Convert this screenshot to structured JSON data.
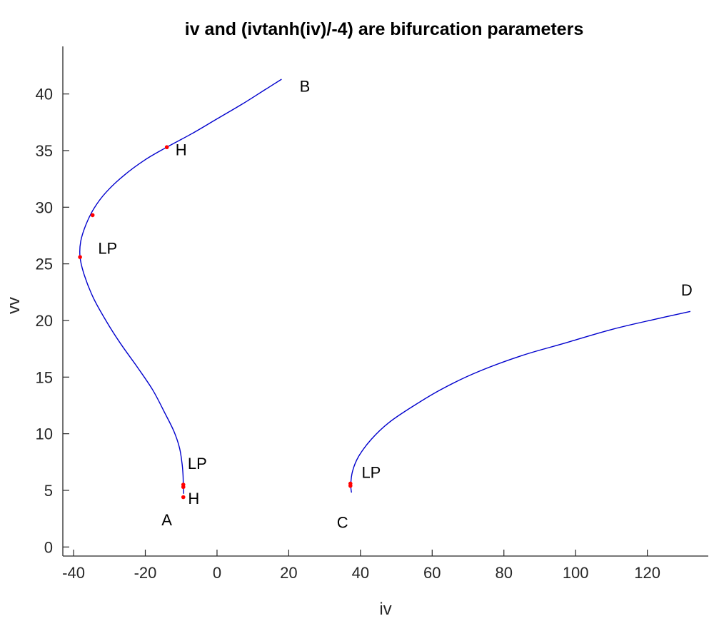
{
  "chart_data": {
    "type": "line",
    "title": "iv and (ivtanh(iv)/-4) are bifurcation parameters",
    "xlabel": "iv",
    "ylabel": "vv",
    "xlim": [
      -43,
      137
    ],
    "ylim": [
      -0.8,
      44.2
    ],
    "xticks": [
      -40,
      -20,
      0,
      20,
      40,
      60,
      80,
      100,
      120
    ],
    "yticks": [
      0,
      5,
      10,
      15,
      20,
      25,
      30,
      35,
      40
    ],
    "xtick_labels": [
      "-40",
      "-20",
      "0",
      "20",
      "40",
      "60",
      "80",
      "100",
      "120"
    ],
    "ytick_labels": [
      "0",
      "5",
      "10",
      "15",
      "20",
      "25",
      "30",
      "35",
      "40"
    ],
    "grid": false,
    "line_color": "#0000cd",
    "point_color": "#ff0000",
    "series": [
      {
        "points": [
          [
            -9.3,
            4.7
          ],
          [
            -9.4,
            5.5
          ],
          [
            -9.5,
            6.5
          ],
          [
            -9.8,
            7.5
          ],
          [
            -10.5,
            8.8
          ],
          [
            -12,
            10.2
          ],
          [
            -14.5,
            11.8
          ],
          [
            -18,
            13.9
          ],
          [
            -22.5,
            16
          ],
          [
            -27,
            18
          ],
          [
            -31,
            20
          ],
          [
            -34.5,
            22
          ],
          [
            -37,
            24
          ],
          [
            -38.2,
            25.6
          ],
          [
            -38,
            27
          ],
          [
            -36.5,
            28.5
          ],
          [
            -34.3,
            29.9
          ],
          [
            -31,
            31.3
          ],
          [
            -26,
            32.8
          ],
          [
            -20,
            34.2
          ],
          [
            -14,
            35.3
          ],
          [
            -7,
            36.5
          ],
          [
            0,
            37.8
          ],
          [
            7,
            39.1
          ],
          [
            13,
            40.3
          ],
          [
            18,
            41.3
          ]
        ]
      },
      {
        "points": [
          [
            37.5,
            4.8
          ],
          [
            37.3,
            5.5
          ],
          [
            37.8,
            6.7
          ],
          [
            39.5,
            8
          ],
          [
            43,
            9.5
          ],
          [
            48,
            11
          ],
          [
            55,
            12.5
          ],
          [
            63,
            14
          ],
          [
            73,
            15.5
          ],
          [
            85,
            16.9
          ],
          [
            97,
            18
          ],
          [
            110,
            19.2
          ],
          [
            122,
            20.1
          ],
          [
            132,
            20.8
          ]
        ]
      }
    ],
    "special_points": [
      [
        -38.2,
        25.6
      ],
      [
        -34.7,
        29.3
      ],
      [
        -14,
        35.3
      ],
      [
        -9.4,
        5.5
      ],
      [
        -9.4,
        5.3
      ],
      [
        -9.4,
        4.4
      ],
      [
        37.2,
        5.6
      ],
      [
        37.2,
        5.4
      ]
    ],
    "annotations": [
      {
        "text": "B",
        "x": 24.5,
        "y": 40.2
      },
      {
        "text": "H",
        "x": -10,
        "y": 34.6
      },
      {
        "text": "LP",
        "x": -30.5,
        "y": 25.9
      },
      {
        "text": "LP",
        "x": -5.5,
        "y": 6.9
      },
      {
        "text": "H",
        "x": -6.5,
        "y": 3.8
      },
      {
        "text": "A",
        "x": -14,
        "y": 1.9
      },
      {
        "text": "D",
        "x": 131,
        "y": 22.2
      },
      {
        "text": "LP",
        "x": 43,
        "y": 6.1
      },
      {
        "text": "C",
        "x": 35,
        "y": 1.7
      }
    ]
  }
}
